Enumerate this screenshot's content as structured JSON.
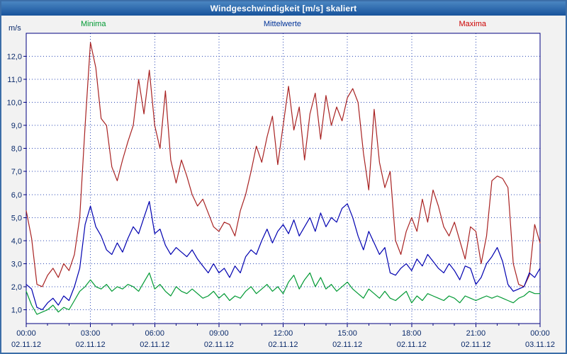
{
  "title_bar": {
    "title": "Windgeschwindigkeit [m/s] skaliert"
  },
  "legend": [
    {
      "label": "Minima",
      "color": "#009933"
    },
    {
      "label": "Mittelwerte",
      "color": "#003399"
    },
    {
      "label": "Maxima",
      "color": "#cc0000"
    }
  ],
  "chart_data": {
    "type": "line",
    "title": "Windgeschwindigkeit [m/s] skaliert",
    "ylabel": "m/s",
    "xlabel": "",
    "ylim": [
      0.4,
      13.0
    ],
    "x_start_hour": 0,
    "x_step_hours": 0.25,
    "x_total_hours": 24,
    "axis_color": "#000080",
    "plot_bg": "#ffffff",
    "grid": {
      "horizontal_step": 1,
      "vertical_step_hours": 3,
      "color": "#2f4bb5",
      "style": "dotted"
    },
    "y_ticks": [
      {
        "value": 1,
        "label": "1,0"
      },
      {
        "value": 2,
        "label": "2,0"
      },
      {
        "value": 3,
        "label": "3,0"
      },
      {
        "value": 4,
        "label": "4,0"
      },
      {
        "value": 5,
        "label": "5,0"
      },
      {
        "value": 6,
        "label": "6,0"
      },
      {
        "value": 7,
        "label": "7,0"
      },
      {
        "value": 8,
        "label": "8,0"
      },
      {
        "value": 9,
        "label": "9,0"
      },
      {
        "value": 10,
        "label": "10,0"
      },
      {
        "value": 11,
        "label": "11,0"
      },
      {
        "value": 12,
        "label": "12,0"
      }
    ],
    "x_ticks": [
      {
        "hour": 0,
        "time": "00:00",
        "date": "02.11.12"
      },
      {
        "hour": 3,
        "time": "03:00",
        "date": "02.11.12"
      },
      {
        "hour": 6,
        "time": "06:00",
        "date": "02.11.12"
      },
      {
        "hour": 9,
        "time": "09:00",
        "date": "02.11.12"
      },
      {
        "hour": 12,
        "time": "12:00",
        "date": "02.11.12"
      },
      {
        "hour": 15,
        "time": "15:00",
        "date": "02.11.12"
      },
      {
        "hour": 18,
        "time": "18:00",
        "date": "02.11.12"
      },
      {
        "hour": 21,
        "time": "21:00",
        "date": "02.11.12"
      },
      {
        "hour": 24,
        "time": "00:00",
        "date": "03.11.12"
      }
    ],
    "series": [
      {
        "name": "Maxima",
        "color": "#a82222",
        "values": [
          5.3,
          4.1,
          2.1,
          2.0,
          2.5,
          2.8,
          2.4,
          3.0,
          2.7,
          3.4,
          5.0,
          9.0,
          12.6,
          11.5,
          9.3,
          9.0,
          7.2,
          6.6,
          7.5,
          8.3,
          9.0,
          11.0,
          9.5,
          11.4,
          9.0,
          8.0,
          10.5,
          7.5,
          6.5,
          7.5,
          6.8,
          6.0,
          5.5,
          5.8,
          5.2,
          4.6,
          4.4,
          4.8,
          4.7,
          4.2,
          5.3,
          6.0,
          7.0,
          8.1,
          7.4,
          8.5,
          9.4,
          7.3,
          9.0,
          10.7,
          8.8,
          9.8,
          7.5,
          9.5,
          10.4,
          8.4,
          10.3,
          9.0,
          9.8,
          9.2,
          10.2,
          10.6,
          10.0,
          7.8,
          6.2,
          9.7,
          7.4,
          6.3,
          7.0,
          4.0,
          3.4,
          4.4,
          5.0,
          4.4,
          5.8,
          4.8,
          6.2,
          5.5,
          4.6,
          4.2,
          4.8,
          4.0,
          3.2,
          4.6,
          4.4,
          3.0,
          4.2,
          6.6,
          6.8,
          6.7,
          6.3,
          3.0,
          2.1,
          2.0,
          2.5,
          4.7,
          3.9
        ]
      },
      {
        "name": "Mittelwerte",
        "color": "#0000b0",
        "values": [
          2.1,
          1.9,
          1.1,
          1.0,
          1.3,
          1.5,
          1.2,
          1.6,
          1.4,
          2.0,
          2.8,
          4.7,
          5.5,
          4.6,
          4.2,
          3.6,
          3.4,
          3.9,
          3.5,
          4.1,
          4.6,
          4.3,
          5.0,
          5.7,
          4.3,
          4.5,
          3.8,
          3.4,
          3.7,
          3.5,
          3.3,
          3.6,
          3.2,
          2.9,
          2.6,
          3.0,
          2.6,
          2.8,
          2.4,
          2.9,
          2.6,
          3.3,
          3.6,
          3.4,
          4.0,
          4.5,
          3.9,
          4.4,
          4.7,
          4.3,
          4.9,
          4.2,
          4.6,
          5.0,
          4.4,
          5.2,
          4.6,
          5.0,
          4.8,
          5.4,
          5.6,
          5.0,
          4.2,
          3.6,
          4.4,
          3.9,
          3.4,
          3.7,
          2.6,
          2.5,
          2.8,
          3.0,
          2.7,
          3.2,
          2.9,
          3.4,
          3.1,
          2.8,
          2.6,
          3.0,
          2.7,
          2.3,
          2.9,
          2.8,
          2.1,
          2.4,
          3.0,
          3.3,
          3.7,
          3.1,
          2.1,
          1.8,
          1.9,
          2.0,
          2.6,
          2.4,
          2.8
        ]
      },
      {
        "name": "Minima",
        "color": "#009933",
        "values": [
          1.8,
          1.2,
          0.8,
          0.9,
          1.0,
          1.2,
          0.9,
          1.1,
          1.0,
          1.4,
          1.8,
          2.0,
          2.3,
          2.0,
          1.9,
          2.1,
          1.8,
          2.0,
          1.9,
          2.1,
          2.0,
          1.8,
          2.2,
          2.6,
          1.9,
          2.1,
          1.8,
          1.6,
          2.0,
          1.8,
          1.7,
          1.9,
          1.7,
          1.5,
          1.6,
          1.8,
          1.5,
          1.7,
          1.4,
          1.6,
          1.5,
          1.8,
          2.0,
          1.7,
          1.9,
          2.1,
          1.8,
          2.0,
          1.7,
          2.2,
          2.5,
          1.9,
          2.3,
          2.6,
          2.0,
          2.4,
          1.9,
          2.1,
          1.8,
          2.0,
          2.2,
          1.9,
          1.7,
          1.5,
          1.9,
          1.7,
          1.5,
          1.8,
          1.5,
          1.4,
          1.6,
          1.8,
          1.3,
          1.6,
          1.4,
          1.7,
          1.6,
          1.5,
          1.4,
          1.6,
          1.5,
          1.3,
          1.6,
          1.5,
          1.4,
          1.5,
          1.6,
          1.5,
          1.6,
          1.5,
          1.4,
          1.3,
          1.5,
          1.6,
          1.8,
          1.7,
          1.7
        ]
      }
    ]
  }
}
